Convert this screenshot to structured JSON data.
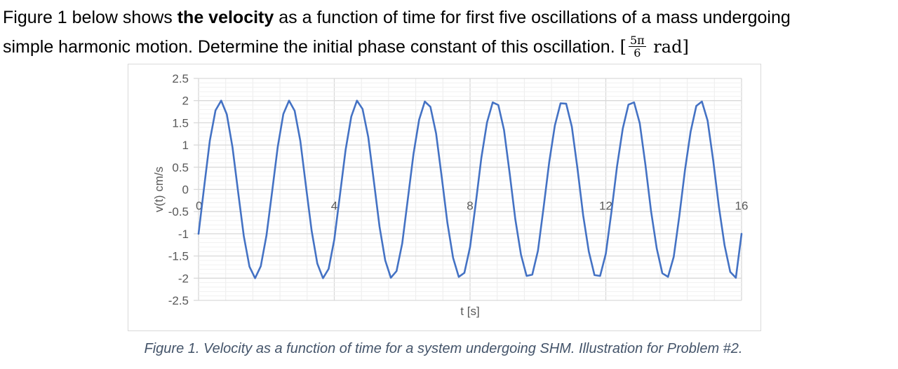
{
  "problem": {
    "text_part1": "Figure 1 below shows ",
    "bold_phrase": "the velocity",
    "text_part2": " as a function of time for first five oscillations of a mass undergoing",
    "text_line2": "simple harmonic motion. Determine the initial phase constant of this oscillation. ",
    "answer_open": "[",
    "answer_numerator": "5π",
    "answer_denominator": "6",
    "answer_unit": " rad]"
  },
  "caption": "Figure 1. Velocity as a function of time for a system undergoing SHM. Illustration for Problem #2.",
  "colors": {
    "line": "#4472c4",
    "grid": "#d9d9d9",
    "axis_text": "#595959",
    "caption": "#44546a"
  },
  "chart_data": {
    "type": "line",
    "title": "",
    "xlabel": "t [s]",
    "ylabel": "v(t) cm/s",
    "xlim": [
      0,
      16
    ],
    "ylim": [
      -2.5,
      2.5
    ],
    "x_ticks": [
      0,
      4,
      8,
      12,
      16
    ],
    "x_tick_labels": [
      "0",
      "4",
      "8",
      "12",
      "16"
    ],
    "y_ticks": [
      2.5,
      2,
      1.5,
      1,
      0.5,
      0,
      -0.5,
      -1,
      -1.5,
      -2,
      -2.5
    ],
    "y_tick_labels": [
      "2.5",
      "2",
      "1.5",
      "1",
      "0.5",
      "0",
      "-0.5",
      "-1",
      "-1.5",
      "-2",
      "-2.5"
    ],
    "x_minor_step": 0.8,
    "grid": true,
    "legend": "none",
    "series": [
      {
        "x": [
          0,
          0.167,
          0.333,
          0.5,
          0.667,
          0.833,
          1.0,
          1.167,
          1.333,
          1.5,
          1.667,
          1.833,
          2.0,
          2.167,
          2.333,
          2.5,
          2.667,
          2.833,
          3.0,
          3.167,
          3.333,
          3.5,
          3.667,
          3.833,
          4.0,
          4.167,
          4.333,
          4.5,
          4.667,
          4.833,
          5.0,
          5.167,
          5.333,
          5.5,
          5.667,
          5.833,
          6.0,
          6.167,
          6.333,
          6.5,
          6.667,
          6.833,
          7.0,
          7.167,
          7.333,
          7.5,
          7.667,
          7.833,
          8.0,
          8.167,
          8.333,
          8.5,
          8.667,
          8.833,
          9.0,
          9.167,
          9.333,
          9.5,
          9.667,
          9.833,
          10.0,
          10.167,
          10.333,
          10.5,
          10.667,
          10.833,
          11.0,
          11.167,
          11.333,
          11.5,
          11.667,
          11.833,
          12.0,
          12.167,
          12.333,
          12.5,
          12.667,
          12.833,
          13.0,
          13.167,
          13.333,
          13.5,
          13.667,
          13.833,
          14.0,
          14.167,
          14.333,
          14.5,
          14.667,
          14.833,
          15.0,
          15.167,
          15.333,
          15.5,
          15.667,
          15.833,
          16.0
        ],
        "y": [
          -1.0,
          0.07,
          1.1,
          1.78,
          2.0,
          1.69,
          0.95,
          -0.07,
          -1.05,
          -1.74,
          -2.0,
          -1.73,
          -1.04,
          -0.06,
          0.96,
          1.7,
          2.0,
          1.77,
          1.09,
          0.06,
          -0.93,
          -1.67,
          -2.0,
          -1.79,
          -1.13,
          -0.12,
          0.89,
          1.64,
          2.0,
          1.81,
          1.18,
          0.17,
          -0.84,
          -1.6,
          -1.99,
          -1.84,
          -1.22,
          -0.22,
          0.8,
          1.57,
          1.98,
          1.86,
          1.26,
          0.27,
          -0.75,
          -1.54,
          -1.97,
          -1.88,
          -1.3,
          -0.32,
          0.71,
          1.51,
          1.96,
          1.9,
          1.34,
          0.36,
          -0.67,
          -1.47,
          -1.95,
          -1.92,
          -1.38,
          -0.41,
          0.62,
          1.44,
          1.94,
          1.93,
          1.41,
          0.46,
          -0.58,
          -1.4,
          -1.93,
          -1.95,
          -1.45,
          -0.5,
          0.53,
          1.37,
          1.91,
          1.96,
          1.49,
          0.55,
          -0.49,
          -1.33,
          -1.89,
          -1.97,
          -1.52,
          -0.6,
          0.44,
          1.3,
          1.88,
          1.98,
          1.55,
          0.64,
          -0.39,
          -1.26,
          -1.86,
          -1.99,
          -1.0
        ]
      }
    ]
  }
}
